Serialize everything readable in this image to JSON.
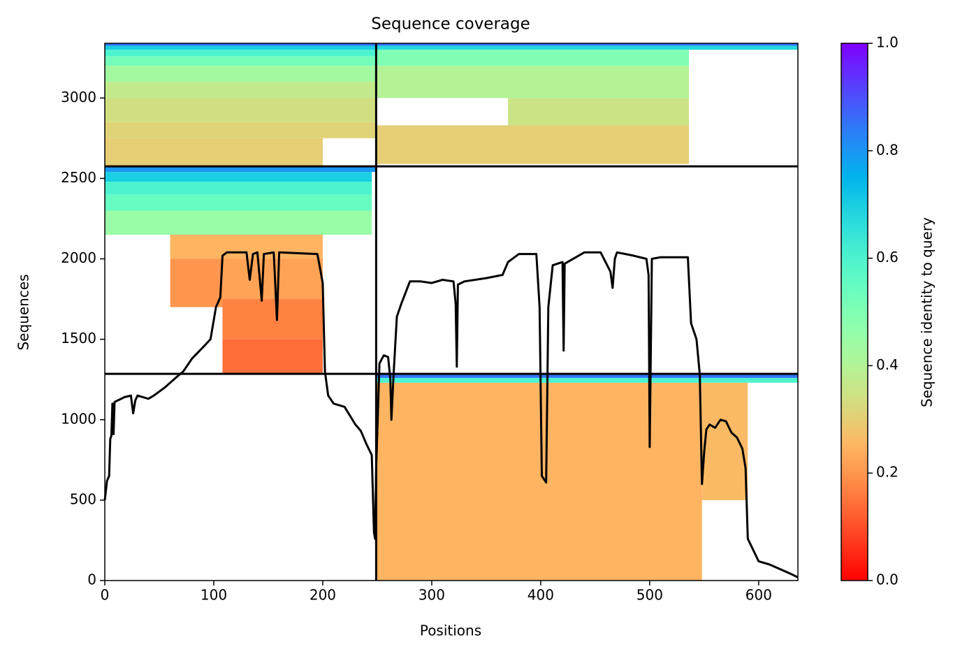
{
  "chart_data": {
    "type": "coverage",
    "title": "Sequence coverage",
    "x_label": "Positions",
    "y_label": "Sequences",
    "colorbar_label": "Sequence identity to query",
    "colormap": "rainbow_r",
    "xlim": [
      0,
      636
    ],
    "ylim": [
      0,
      3340
    ],
    "xticks": [
      0,
      100,
      200,
      300,
      400,
      500,
      600
    ],
    "yticks": [
      0,
      500,
      1000,
      1500,
      2000,
      2500,
      3000
    ],
    "clim": [
      0,
      1
    ],
    "cticks": [
      {
        "value": 0,
        "label": "0.0"
      },
      0.2,
      0.4,
      0.6,
      0.8,
      {
        "value": 1,
        "label": "1.0"
      }
    ],
    "line_color": "#000000",
    "boundaries_x": [
      249
    ],
    "boundaries_y": [
      1285,
      2575
    ],
    "bands": [
      {
        "x": [
          0,
          200
        ],
        "y": [
          2580,
          2750
        ],
        "identity": 0.3
      },
      {
        "x": [
          0,
          249
        ],
        "y": [
          2750,
          2850
        ],
        "identity": 0.31
      },
      {
        "x": [
          0,
          249
        ],
        "y": [
          2850,
          3000
        ],
        "identity": 0.34
      },
      {
        "x": [
          0,
          249
        ],
        "y": [
          3000,
          3100
        ],
        "identity": 0.37
      },
      {
        "x": [
          0,
          249
        ],
        "y": [
          3100,
          3200
        ],
        "identity": 0.43
      },
      {
        "x": [
          0,
          249
        ],
        "y": [
          3200,
          3260
        ],
        "identity": 0.52
      },
      {
        "x": [
          0,
          249
        ],
        "y": [
          3260,
          3300
        ],
        "identity": 0.6
      },
      {
        "x": [
          0,
          249
        ],
        "y": [
          3300,
          3325
        ],
        "identity": 0.7
      },
      {
        "x": [
          0,
          636
        ],
        "y": [
          3325,
          3340
        ],
        "identity": 0.85
      },
      {
        "x": [
          249,
          636
        ],
        "y": [
          3300,
          3325
        ],
        "identity": 0.68
      },
      {
        "x": [
          249,
          536
        ],
        "y": [
          3200,
          3300
        ],
        "identity": 0.5
      },
      {
        "x": [
          249,
          536
        ],
        "y": [
          3000,
          3200
        ],
        "identity": 0.4
      },
      {
        "x": [
          370,
          536
        ],
        "y": [
          2830,
          3000
        ],
        "identity": 0.35
      },
      {
        "x": [
          249,
          536
        ],
        "y": [
          2590,
          2830
        ],
        "identity": 0.3
      },
      {
        "x": [
          0,
          245
        ],
        "y": [
          2150,
          2300
        ],
        "identity": 0.45
      },
      {
        "x": [
          0,
          245
        ],
        "y": [
          2300,
          2400
        ],
        "identity": 0.55
      },
      {
        "x": [
          0,
          245
        ],
        "y": [
          2400,
          2480
        ],
        "identity": 0.6
      },
      {
        "x": [
          0,
          245
        ],
        "y": [
          2480,
          2540
        ],
        "identity": 0.7
      },
      {
        "x": [
          0,
          249
        ],
        "y": [
          2540,
          2575
        ],
        "identity": 0.8
      },
      {
        "x": [
          60,
          200
        ],
        "y": [
          2000,
          2150
        ],
        "identity": 0.25
      },
      {
        "x": [
          60,
          108
        ],
        "y": [
          1700,
          2000
        ],
        "identity": 0.2
      },
      {
        "x": [
          108,
          200
        ],
        "y": [
          1750,
          2000
        ],
        "identity": 0.22
      },
      {
        "x": [
          108,
          200
        ],
        "y": [
          1500,
          1750
        ],
        "identity": 0.17
      },
      {
        "x": [
          108,
          200
        ],
        "y": [
          1285,
          1500
        ],
        "identity": 0.14
      },
      {
        "x": [
          249,
          548
        ],
        "y": [
          0,
          1230
        ],
        "identity": 0.25
      },
      {
        "x": [
          548,
          590
        ],
        "y": [
          500,
          1230
        ],
        "identity": 0.26
      },
      {
        "x": [
          249,
          636
        ],
        "y": [
          1230,
          1260
        ],
        "identity": 0.6
      },
      {
        "x": [
          249,
          636
        ],
        "y": [
          1260,
          1285
        ],
        "identity": 0.85
      }
    ],
    "coverage": {
      "x": [
        0,
        2,
        4,
        5,
        6,
        7,
        8,
        9,
        12,
        18,
        24,
        26,
        28,
        30,
        40,
        45,
        55,
        65,
        72,
        80,
        90,
        97,
        102,
        106,
        108,
        112,
        130,
        133,
        136,
        140,
        144,
        146,
        155,
        158,
        160,
        195,
        197,
        200,
        202,
        205,
        210,
        220,
        230,
        235,
        240,
        245,
        247,
        248,
        249,
        252,
        256,
        260,
        262,
        263,
        265,
        268,
        272,
        280,
        290,
        300,
        310,
        320,
        322,
        323,
        324,
        330,
        350,
        365,
        370,
        380,
        396,
        399,
        401,
        403,
        405,
        407,
        411,
        420,
        421,
        422,
        440,
        455,
        464,
        466,
        468,
        470,
        485,
        497,
        499,
        500,
        502,
        510,
        520,
        535,
        538,
        543,
        546,
        548,
        550,
        552,
        555,
        560,
        565,
        570,
        575,
        580,
        585,
        588,
        590,
        600,
        610,
        620,
        630,
        636
      ],
      "values": [
        500,
        620,
        650,
        880,
        900,
        1100,
        910,
        1110,
        1120,
        1140,
        1150,
        1040,
        1120,
        1150,
        1130,
        1150,
        1200,
        1260,
        1300,
        1380,
        1450,
        1500,
        1700,
        1760,
        2020,
        2040,
        2040,
        1870,
        2030,
        2040,
        1740,
        2030,
        2040,
        1620,
        2040,
        2030,
        1960,
        1850,
        1300,
        1150,
        1100,
        1080,
        970,
        930,
        850,
        780,
        300,
        260,
        700,
        1350,
        1400,
        1390,
        1250,
        1000,
        1280,
        1640,
        1720,
        1860,
        1860,
        1850,
        1870,
        1860,
        1720,
        1330,
        1840,
        1860,
        1880,
        1900,
        1980,
        2030,
        2030,
        1700,
        650,
        630,
        610,
        1700,
        1960,
        1980,
        1430,
        1970,
        2040,
        2040,
        1920,
        1820,
        2000,
        2040,
        2020,
        2000,
        1900,
        830,
        2000,
        2010,
        2010,
        2010,
        1600,
        1500,
        1280,
        600,
        800,
        940,
        970,
        950,
        1000,
        990,
        920,
        890,
        820,
        700,
        260,
        120,
        100,
        70,
        40,
        20
      ]
    }
  }
}
